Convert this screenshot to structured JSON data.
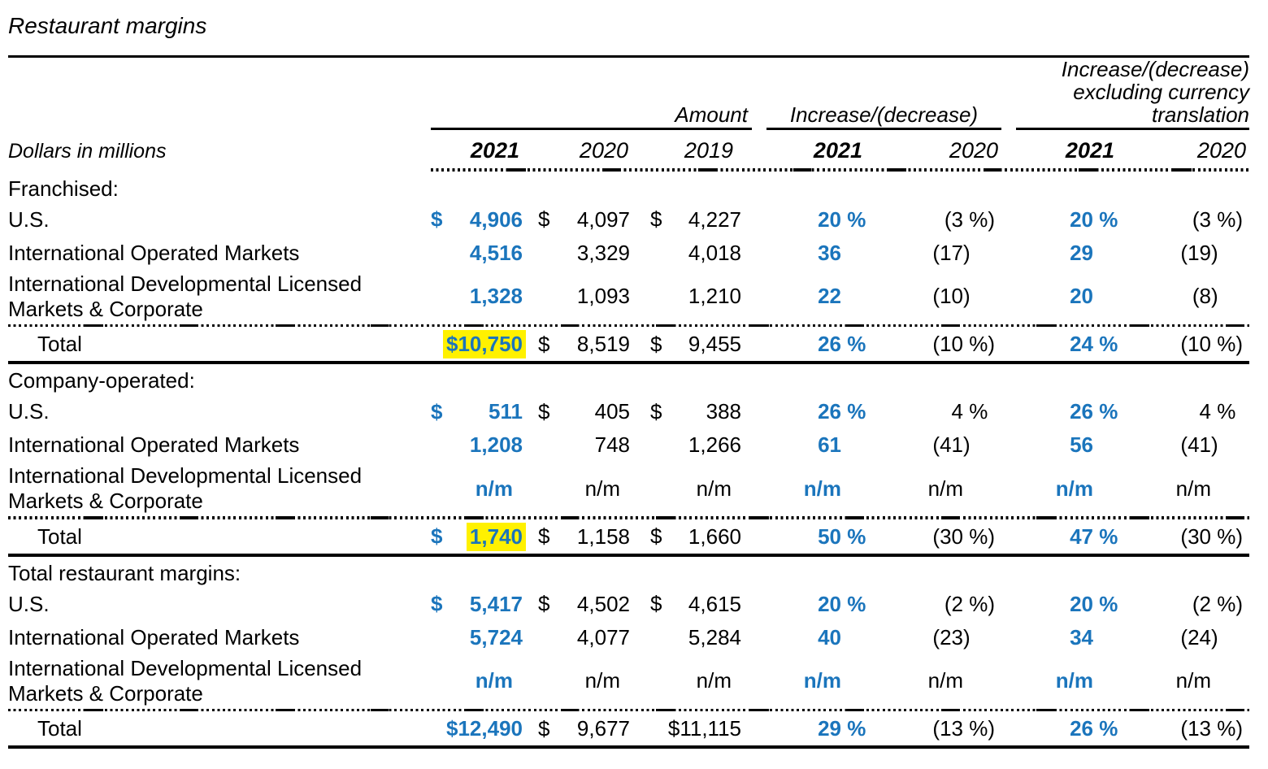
{
  "title": "Restaurant margins",
  "colors": {
    "accent_blue": "#1B75BC",
    "highlight_yellow": "#FFF100",
    "text": "#000000"
  },
  "header": {
    "row_label": "Dollars in millions",
    "groups": {
      "amount": "Amount",
      "increase": "Increase/(decrease)",
      "increase_excl": "Increase/(decrease)\nexcluding currency\ntranslation"
    },
    "years": {
      "amt2021": "2021",
      "amt2020": "2020",
      "amt2019": "2019",
      "inc2021": "2021",
      "inc2020": "2020",
      "exc2021": "2021",
      "exc2020": "2020"
    }
  },
  "sections": [
    {
      "heading": "Franchised:",
      "rows": [
        {
          "label": "U.S.",
          "cells": {
            "amt2021": {
              "d": "$",
              "v": "4,906"
            },
            "amt2020": {
              "d": "$",
              "v": "4,097"
            },
            "amt2019": {
              "d": "$",
              "v": "4,227"
            },
            "inc2021": {
              "v": "20",
              "s": " %"
            },
            "inc2020": {
              "v": "(3",
              "s": " %)"
            },
            "exc2021": {
              "v": "20",
              "s": " %"
            },
            "exc2020": {
              "v": "(3",
              "s": " %)"
            }
          }
        },
        {
          "label": "International Operated Markets",
          "cells": {
            "amt2021": {
              "v": "4,516"
            },
            "amt2020": {
              "v": "3,329"
            },
            "amt2019": {
              "v": "4,018"
            },
            "inc2021": {
              "v": "36",
              "s": ""
            },
            "inc2020": {
              "v": "(17",
              "s": ")"
            },
            "exc2021": {
              "v": "29",
              "s": ""
            },
            "exc2020": {
              "v": "(19",
              "s": ")"
            }
          }
        },
        {
          "label": "International Developmental Licensed\nMarkets & Corporate",
          "tall": true,
          "cells": {
            "amt2021": {
              "v": "1,328"
            },
            "amt2020": {
              "v": "1,093"
            },
            "amt2019": {
              "v": "1,210"
            },
            "inc2021": {
              "v": "22",
              "s": ""
            },
            "inc2020": {
              "v": "(10",
              "s": ")"
            },
            "exc2021": {
              "v": "20",
              "s": ""
            },
            "exc2020": {
              "v": "(8",
              "s": ")"
            }
          }
        },
        {
          "label": "Total",
          "total": true,
          "cells": {
            "amt2021": {
              "v": "$10,750",
              "h": true
            },
            "amt2020": {
              "d": "$",
              "v": "8,519"
            },
            "amt2019": {
              "d": "$",
              "v": "9,455"
            },
            "inc2021": {
              "v": "26",
              "s": " %"
            },
            "inc2020": {
              "v": "(10",
              "s": " %)"
            },
            "exc2021": {
              "v": "24",
              "s": " %"
            },
            "exc2020": {
              "v": "(10",
              "s": " %)"
            }
          }
        }
      ]
    },
    {
      "heading": "Company-operated:",
      "rows": [
        {
          "label": "U.S.",
          "cells": {
            "amt2021": {
              "d": "$",
              "v": "511"
            },
            "amt2020": {
              "d": "$",
              "v": "405"
            },
            "amt2019": {
              "d": "$",
              "v": "388"
            },
            "inc2021": {
              "v": "26",
              "s": " %"
            },
            "inc2020": {
              "v": "4",
              "s": " %"
            },
            "exc2021": {
              "v": "26",
              "s": " %"
            },
            "exc2020": {
              "v": "4",
              "s": " %"
            }
          }
        },
        {
          "label": "International Operated Markets",
          "cells": {
            "amt2021": {
              "v": "1,208"
            },
            "amt2020": {
              "v": "748"
            },
            "amt2019": {
              "v": "1,266"
            },
            "inc2021": {
              "v": "61",
              "s": ""
            },
            "inc2020": {
              "v": "(41",
              "s": ")"
            },
            "exc2021": {
              "v": "56",
              "s": ""
            },
            "exc2020": {
              "v": "(41",
              "s": ")"
            }
          }
        },
        {
          "label": "International Developmental Licensed\nMarkets & Corporate",
          "tall": true,
          "cells": {
            "amt2021": {
              "v": "n/m",
              "inset": true
            },
            "amt2020": {
              "v": "n/m",
              "inset": true
            },
            "amt2019": {
              "v": "n/m",
              "inset": true
            },
            "inc2021": {
              "v": "n/m",
              "s": ""
            },
            "inc2020": {
              "v": "n/m",
              "s": ""
            },
            "exc2021": {
              "v": "n/m",
              "s": ""
            },
            "exc2020": {
              "v": "n/m",
              "s": ""
            }
          }
        },
        {
          "label": "Total",
          "total": true,
          "cells": {
            "amt2021": {
              "d": "$",
              "v": "1,740",
              "h": true
            },
            "amt2020": {
              "d": "$",
              "v": "1,158"
            },
            "amt2019": {
              "d": "$",
              "v": "1,660"
            },
            "inc2021": {
              "v": "50",
              "s": " %"
            },
            "inc2020": {
              "v": "(30",
              "s": " %)"
            },
            "exc2021": {
              "v": "47",
              "s": " %"
            },
            "exc2020": {
              "v": "(30",
              "s": " %)"
            }
          }
        }
      ]
    },
    {
      "heading": "Total restaurant margins:",
      "rows": [
        {
          "label": "U.S.",
          "cells": {
            "amt2021": {
              "d": "$",
              "v": "5,417"
            },
            "amt2020": {
              "d": "$",
              "v": "4,502"
            },
            "amt2019": {
              "d": "$",
              "v": "4,615"
            },
            "inc2021": {
              "v": "20",
              "s": " %"
            },
            "inc2020": {
              "v": "(2",
              "s": " %)"
            },
            "exc2021": {
              "v": "20",
              "s": " %"
            },
            "exc2020": {
              "v": "(2",
              "s": " %)"
            }
          }
        },
        {
          "label": "International Operated Markets",
          "cells": {
            "amt2021": {
              "v": "5,724"
            },
            "amt2020": {
              "v": "4,077"
            },
            "amt2019": {
              "v": "5,284"
            },
            "inc2021": {
              "v": "40",
              "s": ""
            },
            "inc2020": {
              "v": "(23",
              "s": ")"
            },
            "exc2021": {
              "v": "34",
              "s": ""
            },
            "exc2020": {
              "v": "(24",
              "s": ")"
            }
          }
        },
        {
          "label": "International Developmental Licensed\nMarkets & Corporate",
          "tall": true,
          "cells": {
            "amt2021": {
              "v": "n/m",
              "inset": true
            },
            "amt2020": {
              "v": "n/m",
              "inset": true
            },
            "amt2019": {
              "v": "n/m",
              "inset": true
            },
            "inc2021": {
              "v": "n/m",
              "s": ""
            },
            "inc2020": {
              "v": "n/m",
              "s": ""
            },
            "exc2021": {
              "v": "n/m",
              "s": ""
            },
            "exc2020": {
              "v": "n/m",
              "s": ""
            }
          }
        },
        {
          "label": "Total",
          "total": true,
          "cells": {
            "amt2021": {
              "v": "$12,490"
            },
            "amt2020": {
              "d": "$",
              "v": "9,677"
            },
            "amt2019": {
              "v": "$11,115"
            },
            "inc2021": {
              "v": "29",
              "s": " %"
            },
            "inc2020": {
              "v": "(13",
              "s": " %)"
            },
            "exc2021": {
              "v": "26",
              "s": " %"
            },
            "exc2020": {
              "v": "(13",
              "s": " %)"
            }
          }
        }
      ]
    }
  ]
}
